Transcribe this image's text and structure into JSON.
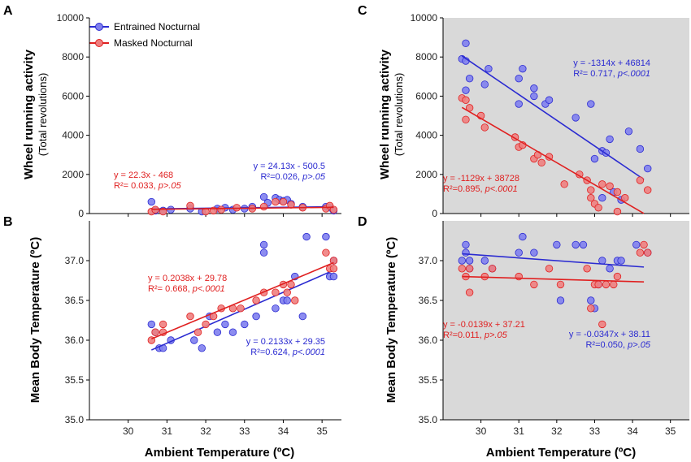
{
  "colors": {
    "entrained": "#2b2bd1",
    "masked": "#e02020",
    "entrained_fill": "#8080ee",
    "masked_fill": "#ee8080",
    "shade": "#d9d9d9"
  },
  "legend": {
    "entrained": "Entrained Nocturnal",
    "masked": "Masked Nocturnal"
  },
  "titles": {
    "x": "Ambient Temperature (ºC)",
    "x_right": "Ambient Temperature (ºC)",
    "y_activity_main": "Wheel running activity",
    "y_activity_sub": "(Total revolutions)",
    "y_body_temp": "Mean Body Temperature (ºC)"
  },
  "chart_data": [
    {
      "panel": "A",
      "type": "scatter",
      "shaded": false,
      "xlim": [
        29,
        35.5
      ],
      "ylim": [
        0,
        10000
      ],
      "yticks": [
        0,
        2000,
        4000,
        6000,
        8000,
        10000
      ],
      "xticks": [],
      "series": [
        {
          "name": "Entrained Nocturnal",
          "fit": {
            "slope": 24.13,
            "intercept": -500.5,
            "x_range": [
              30.6,
              35.3
            ]
          },
          "equation": "y = 24.13x - 500.5",
          "r2": "R²=0.026, ",
          "p": "p>.05",
          "points": [
            [
              30.6,
              600
            ],
            [
              30.7,
              150
            ],
            [
              30.9,
              150
            ],
            [
              31.1,
              200
            ],
            [
              31.6,
              250
            ],
            [
              31.9,
              100
            ],
            [
              32.3,
              250
            ],
            [
              32.5,
              300
            ],
            [
              32.7,
              200
            ],
            [
              33.0,
              250
            ],
            [
              33.2,
              350
            ],
            [
              33.5,
              850
            ],
            [
              33.6,
              550
            ],
            [
              33.8,
              800
            ],
            [
              33.9,
              700
            ],
            [
              34.0,
              650
            ],
            [
              34.1,
              700
            ],
            [
              34.2,
              500
            ],
            [
              34.5,
              350
            ],
            [
              35.1,
              350
            ],
            [
              35.2,
              300
            ],
            [
              35.3,
              150
            ]
          ]
        },
        {
          "name": "Masked Nocturnal",
          "fit": {
            "slope": 22.3,
            "intercept": -468,
            "x_range": [
              30.6,
              35.3
            ]
          },
          "equation": "y = 22.3x - 468",
          "r2": "R²= 0.033, ",
          "p": "p>.05",
          "points": [
            [
              30.6,
              100
            ],
            [
              30.7,
              200
            ],
            [
              30.9,
              100
            ],
            [
              31.6,
              400
            ],
            [
              32.0,
              100
            ],
            [
              32.2,
              150
            ],
            [
              32.4,
              200
            ],
            [
              32.8,
              300
            ],
            [
              33.2,
              250
            ],
            [
              33.5,
              350
            ],
            [
              33.8,
              600
            ],
            [
              34.0,
              600
            ],
            [
              34.2,
              450
            ],
            [
              34.5,
              300
            ],
            [
              35.1,
              250
            ],
            [
              35.2,
              400
            ],
            [
              35.3,
              200
            ]
          ]
        }
      ]
    },
    {
      "panel": "B",
      "type": "scatter",
      "shaded": false,
      "xlim": [
        29,
        35.5
      ],
      "ylim": [
        35,
        37.5
      ],
      "yticks": [
        35.0,
        35.5,
        36.0,
        36.5,
        37.0
      ],
      "xticks": [
        30,
        31,
        32,
        33,
        34,
        35
      ],
      "series": [
        {
          "name": "Entrained Nocturnal",
          "fit": {
            "slope": 0.2133,
            "intercept": 29.35,
            "x_range": [
              30.6,
              35.3
            ]
          },
          "equation": "y = 0.2133x + 29.35",
          "r2": "R²=0.624, ",
          "p": "p<.0001",
          "points": [
            [
              30.6,
              36.2
            ],
            [
              30.7,
              36.1
            ],
            [
              30.8,
              35.9
            ],
            [
              30.9,
              35.9
            ],
            [
              31.1,
              36.0
            ],
            [
              31.7,
              36.0
            ],
            [
              31.9,
              35.9
            ],
            [
              32.1,
              36.3
            ],
            [
              32.3,
              36.1
            ],
            [
              32.5,
              36.2
            ],
            [
              32.7,
              36.1
            ],
            [
              33.0,
              36.2
            ],
            [
              33.3,
              36.3
            ],
            [
              33.5,
              37.2
            ],
            [
              33.5,
              37.1
            ],
            [
              33.8,
              36.4
            ],
            [
              34.0,
              36.5
            ],
            [
              34.1,
              36.5
            ],
            [
              34.3,
              36.8
            ],
            [
              34.5,
              36.3
            ],
            [
              34.6,
              37.3
            ],
            [
              35.1,
              37.3
            ],
            [
              35.2,
              36.8
            ],
            [
              35.3,
              36.8
            ],
            [
              35.3,
              37.0
            ]
          ]
        },
        {
          "name": "Masked Nocturnal",
          "fit": {
            "slope": 0.2038,
            "intercept": 29.78,
            "x_range": [
              30.6,
              35.3
            ]
          },
          "equation": "y = 0.2038x + 29.78",
          "r2": "R²= 0.668, ",
          "p": "p<.0001",
          "points": [
            [
              30.6,
              36.0
            ],
            [
              30.7,
              36.1
            ],
            [
              30.9,
              36.1
            ],
            [
              30.9,
              36.2
            ],
            [
              31.6,
              36.3
            ],
            [
              31.8,
              36.1
            ],
            [
              32.0,
              36.2
            ],
            [
              32.2,
              36.3
            ],
            [
              32.4,
              36.4
            ],
            [
              32.7,
              36.4
            ],
            [
              32.9,
              36.4
            ],
            [
              33.3,
              36.5
            ],
            [
              33.5,
              36.6
            ],
            [
              33.8,
              36.6
            ],
            [
              34.0,
              36.7
            ],
            [
              34.1,
              36.6
            ],
            [
              34.2,
              36.7
            ],
            [
              34.3,
              36.5
            ],
            [
              35.1,
              37.1
            ],
            [
              35.2,
              36.9
            ],
            [
              35.3,
              37.0
            ],
            [
              35.3,
              36.9
            ]
          ]
        }
      ]
    },
    {
      "panel": "C",
      "type": "scatter",
      "shaded": true,
      "xlim": [
        29,
        35.5
      ],
      "ylim": [
        0,
        10000
      ],
      "yticks": [
        0,
        2000,
        4000,
        6000,
        8000,
        10000
      ],
      "xticks": [],
      "series": [
        {
          "name": "Entrained Nocturnal",
          "fit": {
            "slope": -1314,
            "intercept": 46814,
            "x_range": [
              29.5,
              34.3
            ]
          },
          "equation": "y = -1314x + 46814",
          "r2": "R²= 0.717, ",
          "p": "p<.0001",
          "points": [
            [
              29.5,
              7900
            ],
            [
              29.6,
              8700
            ],
            [
              29.6,
              7800
            ],
            [
              29.7,
              6900
            ],
            [
              29.6,
              6300
            ],
            [
              30.1,
              6600
            ],
            [
              30.2,
              7400
            ],
            [
              31.0,
              6900
            ],
            [
              31.1,
              7400
            ],
            [
              31.0,
              5600
            ],
            [
              31.4,
              6400
            ],
            [
              31.4,
              6000
            ],
            [
              31.7,
              5600
            ],
            [
              31.8,
              5800
            ],
            [
              32.5,
              4900
            ],
            [
              32.9,
              5600
            ],
            [
              33.2,
              3200
            ],
            [
              33.3,
              3100
            ],
            [
              33.4,
              3800
            ],
            [
              33.0,
              2800
            ],
            [
              33.2,
              800
            ],
            [
              33.5,
              1100
            ],
            [
              33.7,
              700
            ],
            [
              33.9,
              4200
            ],
            [
              34.2,
              3300
            ],
            [
              34.4,
              2300
            ]
          ]
        },
        {
          "name": "Masked Nocturnal",
          "fit": {
            "slope": -1129,
            "intercept": 38728,
            "x_range": [
              29.5,
              34.3
            ]
          },
          "equation": "y = -1129x + 38728",
          "r2": "R²=0.895, ",
          "p": "p<.0001",
          "points": [
            [
              29.5,
              5900
            ],
            [
              29.6,
              5800
            ],
            [
              29.6,
              4800
            ],
            [
              29.7,
              5400
            ],
            [
              30.0,
              5000
            ],
            [
              30.1,
              4400
            ],
            [
              30.9,
              3900
            ],
            [
              31.0,
              3400
            ],
            [
              31.1,
              3500
            ],
            [
              31.4,
              2800
            ],
            [
              31.5,
              3000
            ],
            [
              31.6,
              2600
            ],
            [
              31.8,
              2900
            ],
            [
              32.2,
              1500
            ],
            [
              32.6,
              2000
            ],
            [
              32.8,
              1700
            ],
            [
              32.9,
              1200
            ],
            [
              32.9,
              800
            ],
            [
              33.0,
              500
            ],
            [
              33.1,
              300
            ],
            [
              33.2,
              1500
            ],
            [
              33.4,
              1400
            ],
            [
              33.6,
              1100
            ],
            [
              33.6,
              100
            ],
            [
              33.8,
              800
            ],
            [
              34.2,
              1700
            ],
            [
              34.4,
              1200
            ]
          ]
        }
      ]
    },
    {
      "panel": "D",
      "type": "scatter",
      "shaded": true,
      "xlim": [
        29,
        35.5
      ],
      "ylim": [
        35,
        37.5
      ],
      "yticks": [
        35.0,
        35.5,
        36.0,
        36.5,
        37.0
      ],
      "xticks": [
        30,
        31,
        32,
        33,
        34,
        35
      ],
      "series": [
        {
          "name": "Entrained Nocturnal",
          "fit": {
            "slope": -0.0347,
            "intercept": 38.11,
            "x_range": [
              29.5,
              34.3
            ]
          },
          "equation": "y = -0.0347x + 38.11",
          "r2": "R²=0.050, ",
          "p": "p>.05",
          "points": [
            [
              29.5,
              37.0
            ],
            [
              29.6,
              37.2
            ],
            [
              29.6,
              37.1
            ],
            [
              29.7,
              37.0
            ],
            [
              29.7,
              36.9
            ],
            [
              30.1,
              37.0
            ],
            [
              30.3,
              36.9
            ],
            [
              31.0,
              37.1
            ],
            [
              31.1,
              37.3
            ],
            [
              31.4,
              37.1
            ],
            [
              32.0,
              37.2
            ],
            [
              32.1,
              36.5
            ],
            [
              32.5,
              37.2
            ],
            [
              32.9,
              36.5
            ],
            [
              33.0,
              36.4
            ],
            [
              33.2,
              37.0
            ],
            [
              33.4,
              36.9
            ],
            [
              33.6,
              37.0
            ],
            [
              33.7,
              37.0
            ],
            [
              34.1,
              37.2
            ],
            [
              34.4,
              37.1
            ],
            [
              33.1,
              36.7
            ],
            [
              32.7,
              37.2
            ]
          ]
        },
        {
          "name": "Masked Nocturnal",
          "fit": {
            "slope": -0.0139,
            "intercept": 37.21,
            "x_range": [
              29.5,
              34.3
            ]
          },
          "equation": "y = -0.0139x + 37.21",
          "r2": "R²=0.011, ",
          "p": "p>.05",
          "points": [
            [
              29.5,
              36.9
            ],
            [
              29.6,
              36.8
            ],
            [
              29.7,
              36.9
            ],
            [
              29.7,
              36.6
            ],
            [
              30.1,
              36.8
            ],
            [
              30.3,
              36.9
            ],
            [
              31.0,
              36.8
            ],
            [
              31.4,
              36.7
            ],
            [
              31.8,
              36.9
            ],
            [
              32.1,
              36.7
            ],
            [
              32.8,
              36.9
            ],
            [
              32.9,
              36.4
            ],
            [
              33.0,
              36.7
            ],
            [
              33.1,
              36.7
            ],
            [
              33.2,
              36.2
            ],
            [
              33.3,
              36.7
            ],
            [
              33.5,
              36.7
            ],
            [
              33.6,
              36.8
            ],
            [
              34.2,
              37.1
            ],
            [
              34.3,
              37.2
            ],
            [
              34.4,
              37.1
            ]
          ]
        }
      ]
    }
  ]
}
